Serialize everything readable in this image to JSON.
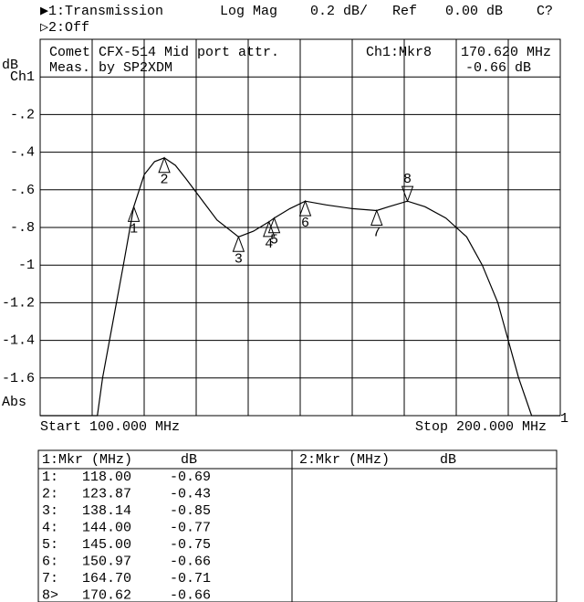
{
  "header": {
    "channel1": "▶1:Transmission",
    "format": "Log Mag",
    "scale": "0.2 dB/",
    "ref_label": "Ref",
    "ref_value": "0.00 dB",
    "status": "C?",
    "channel2": "▷2:Off"
  },
  "chart_data": {
    "type": "line",
    "title": "Comet CFX-514 Mid port attr.",
    "subtitle": "Meas. by SP2XDM",
    "active_marker": "Ch1:Mkr8",
    "active_freq": "170.620 MHz",
    "active_value": "-0.66 dB",
    "y_unit": "dB",
    "y_mode": "Abs",
    "start_label": "Start 100.000 MHz",
    "stop_label": "Stop 200.000 MHz",
    "end_label": "1",
    "xlim": [
      100,
      200
    ],
    "xticks": [
      100,
      110,
      120,
      130,
      140,
      150,
      160,
      170,
      180,
      190,
      200
    ],
    "ylim": [
      -1.8,
      0.2
    ],
    "yticks": [
      {
        "value": 0,
        "label": "Ch1"
      },
      {
        "value": -0.2,
        "label": "-.2"
      },
      {
        "value": -0.4,
        "label": "-.4"
      },
      {
        "value": -0.6,
        "label": "-.6"
      },
      {
        "value": -0.8,
        "label": "-.8"
      },
      {
        "value": -1,
        "label": "-1"
      },
      {
        "value": -1.2,
        "label": "-1.2"
      },
      {
        "value": -1.4,
        "label": "-1.4"
      },
      {
        "value": -1.6,
        "label": "-1.6"
      }
    ],
    "grid": true,
    "color": "#000000",
    "series": [
      {
        "name": "Transmission",
        "color": "#000000",
        "x": [
          100,
          111,
          112,
          114,
          116,
          118,
          120,
          122,
          123.87,
          126,
          128,
          131,
          134,
          138.14,
          141,
          144,
          145,
          148,
          150.97,
          155,
          160,
          164.7,
          167,
          170.62,
          174,
          178,
          182,
          185,
          188,
          190,
          192,
          194.5,
          200
        ],
        "values": [
          -1.8,
          -1.8,
          -1.6,
          -1.3,
          -1.0,
          -0.69,
          -0.52,
          -0.45,
          -0.43,
          -0.47,
          -0.54,
          -0.65,
          -0.76,
          -0.85,
          -0.82,
          -0.77,
          -0.75,
          -0.7,
          -0.66,
          -0.68,
          -0.7,
          -0.71,
          -0.69,
          -0.66,
          -0.69,
          -0.75,
          -0.85,
          -1.0,
          -1.2,
          -1.4,
          -1.6,
          -1.8,
          -1.8
        ]
      }
    ],
    "markers": {
      "labels": [
        "1",
        "2",
        "3",
        "4",
        "5",
        "6",
        "7",
        "8"
      ],
      "x": [
        118,
        123.87,
        138.14,
        144,
        145,
        150.97,
        164.7,
        170.62
      ],
      "values": [
        -0.69,
        -0.43,
        -0.85,
        -0.77,
        -0.75,
        -0.66,
        -0.71,
        -0.66
      ]
    }
  },
  "marker_table": {
    "left_header": [
      "1:Mkr (MHz)",
      "dB"
    ],
    "right_header": [
      "2:Mkr (MHz)",
      "dB"
    ],
    "rows": [
      [
        "1:",
        "118.00",
        "-0.69"
      ],
      [
        "2:",
        "123.87",
        "-0.43"
      ],
      [
        "3:",
        "138.14",
        "-0.85"
      ],
      [
        "4:",
        "144.00",
        "-0.77"
      ],
      [
        "5:",
        "145.00",
        "-0.75"
      ],
      [
        "6:",
        "150.97",
        "-0.66"
      ],
      [
        "7:",
        "164.70",
        "-0.71"
      ],
      [
        "8>",
        "170.62",
        "-0.66"
      ]
    ]
  }
}
